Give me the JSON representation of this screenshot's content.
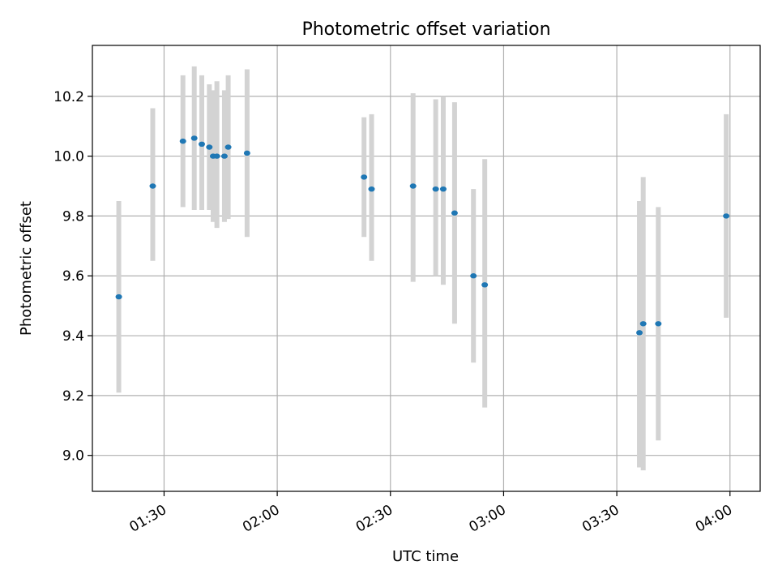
{
  "chart_data": {
    "type": "scatter",
    "title": "Photometric offset variation",
    "xlabel": "UTC time",
    "ylabel": "Photometric offset",
    "x_axis_type": "time",
    "xlim": [
      "01:11",
      "04:08"
    ],
    "ylim": [
      8.88,
      10.37
    ],
    "x_ticks": [
      "01:30",
      "02:00",
      "02:30",
      "03:00",
      "03:30",
      "04:00"
    ],
    "y_ticks": [
      "9.0",
      "9.2",
      "9.4",
      "9.6",
      "9.8",
      "10.0",
      "10.2"
    ],
    "grid": true,
    "colors": {
      "points": "#1f77b4",
      "error_bars": "#d3d3d3",
      "grid": "#b0b0b0"
    },
    "points": [
      {
        "x": "01:18",
        "y": 9.53,
        "ylow": 9.21,
        "yhigh": 9.85
      },
      {
        "x": "01:27",
        "y": 9.9,
        "ylow": 9.65,
        "yhigh": 10.16
      },
      {
        "x": "01:35",
        "y": 10.05,
        "ylow": 9.83,
        "yhigh": 10.27
      },
      {
        "x": "01:38",
        "y": 10.06,
        "ylow": 9.82,
        "yhigh": 10.3
      },
      {
        "x": "01:40",
        "y": 10.04,
        "ylow": 9.82,
        "yhigh": 10.27
      },
      {
        "x": "01:42",
        "y": 10.03,
        "ylow": 9.82,
        "yhigh": 10.24
      },
      {
        "x": "01:43",
        "y": 10.0,
        "ylow": 9.78,
        "yhigh": 10.22
      },
      {
        "x": "01:44",
        "y": 10.0,
        "ylow": 9.76,
        "yhigh": 10.25
      },
      {
        "x": "01:46",
        "y": 10.0,
        "ylow": 9.78,
        "yhigh": 10.22
      },
      {
        "x": "01:47",
        "y": 10.03,
        "ylow": 9.79,
        "yhigh": 10.27
      },
      {
        "x": "01:52",
        "y": 10.01,
        "ylow": 9.73,
        "yhigh": 10.29
      },
      {
        "x": "02:23",
        "y": 9.93,
        "ylow": 9.73,
        "yhigh": 10.13
      },
      {
        "x": "02:25",
        "y": 9.89,
        "ylow": 9.65,
        "yhigh": 10.14
      },
      {
        "x": "02:36",
        "y": 9.9,
        "ylow": 9.58,
        "yhigh": 10.21
      },
      {
        "x": "02:42",
        "y": 9.89,
        "ylow": 9.6,
        "yhigh": 10.19
      },
      {
        "x": "02:44",
        "y": 9.89,
        "ylow": 9.57,
        "yhigh": 10.2
      },
      {
        "x": "02:47",
        "y": 9.81,
        "ylow": 9.44,
        "yhigh": 10.18
      },
      {
        "x": "02:52",
        "y": 9.6,
        "ylow": 9.31,
        "yhigh": 9.89
      },
      {
        "x": "02:55",
        "y": 9.57,
        "ylow": 9.16,
        "yhigh": 9.99
      },
      {
        "x": "03:36",
        "y": 9.41,
        "ylow": 8.96,
        "yhigh": 9.85
      },
      {
        "x": "03:37",
        "y": 9.44,
        "ylow": 8.95,
        "yhigh": 9.93
      },
      {
        "x": "03:41",
        "y": 9.44,
        "ylow": 9.05,
        "yhigh": 9.83
      },
      {
        "x": "03:59",
        "y": 9.8,
        "ylow": 9.46,
        "yhigh": 10.14
      }
    ]
  }
}
